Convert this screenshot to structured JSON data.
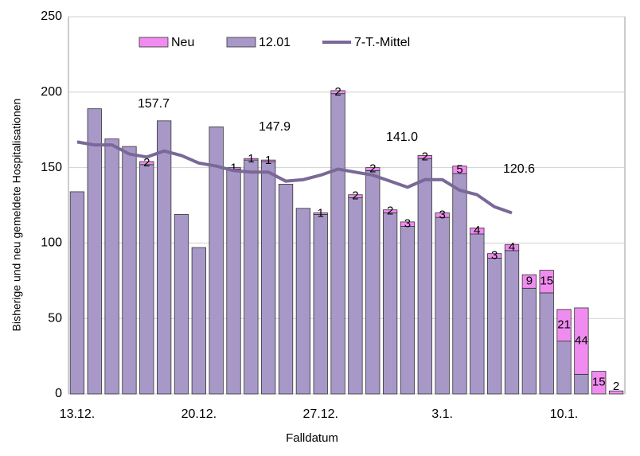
{
  "chart_data": {
    "type": "bar",
    "xlabel": "Falldatum",
    "ylabel": "Bisherige und neu gemeldete Hospitalisationen",
    "categories": [
      "13.12.",
      null,
      null,
      null,
      null,
      null,
      null,
      "20.12.",
      null,
      null,
      null,
      null,
      null,
      null,
      "27.12.",
      null,
      null,
      null,
      null,
      null,
      null,
      "3.1.",
      null,
      null,
      null,
      null,
      null,
      null,
      "10.1.",
      null,
      null,
      null
    ],
    "series": [
      {
        "name": "12.01",
        "color": "#a898c8",
        "values": [
          134,
          189,
          169,
          164,
          152,
          181,
          119,
          97,
          177,
          149,
          155,
          154,
          139,
          123,
          119,
          199,
          130,
          148,
          120,
          111,
          156,
          117,
          146,
          106,
          90,
          95,
          70,
          67,
          35,
          13,
          0,
          0
        ]
      },
      {
        "name": "Neu",
        "color": "#f08cf0",
        "values": [
          null,
          null,
          null,
          null,
          2,
          null,
          null,
          null,
          null,
          1,
          1,
          1,
          null,
          null,
          1,
          2,
          2,
          2,
          2,
          3,
          2,
          3,
          5,
          4,
          3,
          4,
          9,
          15,
          21,
          44,
          15,
          2
        ]
      },
      {
        "name": "7-T.-Mittel",
        "type": "line",
        "color": "#7a6898",
        "values": [
          167,
          165,
          165,
          159,
          157,
          161,
          158,
          153,
          151,
          148,
          147,
          147,
          141,
          142,
          145,
          149,
          147,
          145,
          141,
          137,
          142,
          142,
          135,
          132,
          124,
          120,
          null,
          null,
          null,
          null,
          null,
          null
        ]
      }
    ],
    "annotations": [
      "157.7",
      "147.9",
      "141.0",
      "120.6"
    ],
    "ylim": [
      0,
      250
    ],
    "yticks": [
      0,
      50,
      100,
      150,
      200,
      250
    ],
    "grid": true,
    "legend": "top"
  }
}
